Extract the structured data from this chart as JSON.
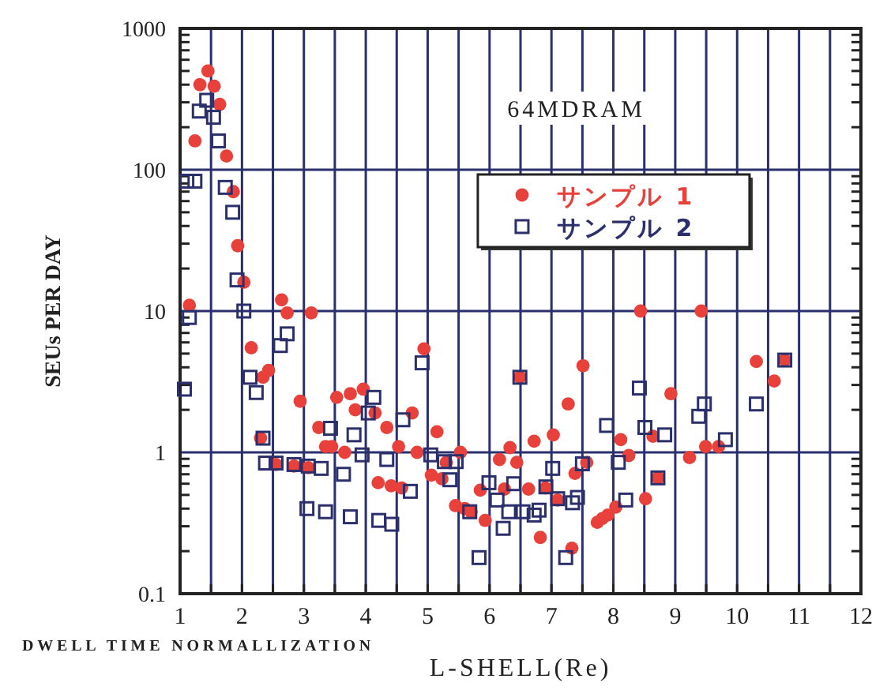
{
  "chart_data": {
    "type": "scatter",
    "xlabel": "L-SHELL(Re)",
    "ylabel": "SEUs PER DAY",
    "log": "y",
    "xlim": [
      1,
      12
    ],
    "ylim": [
      0.1,
      1000
    ],
    "xticks": [
      1,
      {
        "value": 1.5,
        "label": null
      },
      2,
      {
        "value": 2.5,
        "label": null
      },
      3,
      {
        "value": 3.5,
        "label": null
      },
      4,
      {
        "value": 4.5,
        "label": null
      },
      5,
      {
        "value": 5.5,
        "label": null
      },
      6,
      {
        "value": 6.5,
        "label": null
      },
      7,
      {
        "value": 7.5,
        "label": null
      },
      8,
      {
        "value": 8.5,
        "label": null
      },
      9,
      {
        "value": 9.5,
        "label": null
      },
      10,
      {
        "value": 10.5,
        "label": null
      },
      11,
      {
        "value": 11.5,
        "label": null
      },
      12
    ],
    "yticks": [
      0.1,
      1,
      10,
      100,
      1000
    ],
    "grid": true,
    "legend": "top right",
    "annotations": [
      "64MDRAM",
      "DWELL TIME NORMALLIZATION"
    ],
    "series": [
      {
        "name": "サンプル 1",
        "color": "#e8413c",
        "marker": "circle",
        "x": [
          1.45,
          1.32,
          1.55,
          1.64,
          1.24,
          1.75,
          1.86,
          1.93,
          2.03,
          1.15,
          2.64,
          2.73,
          3.12,
          2.15,
          2.43,
          2.34,
          2.94,
          3.53,
          3.75,
          3.96,
          3.83,
          4.15,
          3.24,
          4.75,
          4.34,
          5.15,
          4.94,
          3.35,
          3.45,
          3.66,
          4.53,
          4.83,
          5.53,
          5.3,
          2.3,
          2.55,
          2.84,
          3.07,
          4.2,
          4.41,
          4.58,
          5.06,
          5.23,
          5.45,
          5.6,
          5.7,
          5.85,
          5.93,
          6.16,
          6.24,
          6.33,
          6.44,
          6.49,
          8.44,
          9.42,
          7.51,
          7.27,
          6.72,
          7.03,
          6.63,
          6.82,
          6.9,
          7.1,
          7.38,
          7.57,
          7.33,
          7.74,
          7.82,
          7.91,
          8.04,
          8.12,
          8.25,
          8.52,
          8.64,
          8.93,
          9.23,
          9.49,
          9.7,
          10.31,
          10.6,
          10.77,
          8.72
        ],
        "values": [
          500,
          400,
          390,
          290,
          160,
          125,
          70,
          29,
          16,
          11,
          12,
          9.7,
          9.7,
          5.5,
          3.8,
          3.4,
          2.3,
          2.45,
          2.6,
          2.8,
          2.0,
          1.9,
          1.5,
          1.9,
          1.5,
          1.4,
          5.4,
          1.1,
          1.1,
          1.0,
          1.1,
          1.0,
          1.0,
          0.85,
          1.26,
          0.82,
          0.8,
          0.78,
          0.61,
          0.58,
          0.56,
          0.69,
          0.65,
          0.42,
          0.4,
          0.38,
          0.54,
          0.33,
          0.89,
          0.55,
          1.08,
          0.85,
          3.4,
          10,
          10,
          4.1,
          2.2,
          1.2,
          1.33,
          0.55,
          0.25,
          0.56,
          0.46,
          0.71,
          0.85,
          0.21,
          0.32,
          0.34,
          0.36,
          0.41,
          1.23,
          0.95,
          0.47,
          1.3,
          2.6,
          0.92,
          1.1,
          1.1,
          4.4,
          3.2,
          4.5,
          0.66
        ]
      },
      {
        "name": "サンプル 2",
        "color": "#2b2f6b",
        "marker": "square",
        "x": [
          1.43,
          1.31,
          1.54,
          1.62,
          1.11,
          1.24,
          1.73,
          1.85,
          1.92,
          2.03,
          1.15,
          1.07,
          2.73,
          2.62,
          2.13,
          2.23,
          2.34,
          2.38,
          2.55,
          2.84,
          3.07,
          3.28,
          3.43,
          3.81,
          4.13,
          4.04,
          3.94,
          3.64,
          3.05,
          3.35,
          3.75,
          4.21,
          4.42,
          4.6,
          4.34,
          4.72,
          4.91,
          5.05,
          5.27,
          5.46,
          5.36,
          5.68,
          5.83,
          5.99,
          6.12,
          6.22,
          6.31,
          6.39,
          6.49,
          6.54,
          6.72,
          6.8,
          6.91,
          7.02,
          7.1,
          7.34,
          7.42,
          7.23,
          7.5,
          7.89,
          8.08,
          8.2,
          8.42,
          8.51,
          8.83,
          8.72,
          9.38,
          9.47,
          9.81,
          10.31,
          10.77
        ],
        "values": [
          310,
          260,
          235,
          160,
          83,
          83,
          75,
          50,
          16.6,
          10,
          9,
          2.8,
          6.9,
          5.7,
          3.4,
          2.65,
          1.26,
          0.84,
          0.84,
          0.82,
          0.8,
          0.77,
          1.48,
          1.33,
          2.45,
          1.9,
          0.96,
          0.7,
          0.4,
          0.38,
          0.35,
          0.33,
          0.31,
          1.7,
          0.89,
          0.53,
          4.3,
          0.96,
          0.86,
          0.86,
          0.64,
          0.38,
          0.18,
          0.61,
          0.46,
          0.29,
          0.38,
          0.6,
          3.4,
          0.38,
          0.36,
          0.39,
          0.57,
          0.77,
          0.47,
          0.44,
          0.48,
          0.18,
          0.83,
          1.55,
          0.85,
          0.46,
          2.85,
          1.5,
          1.33,
          0.66,
          1.8,
          2.2,
          1.23,
          2.2,
          4.5
        ]
      }
    ]
  }
}
